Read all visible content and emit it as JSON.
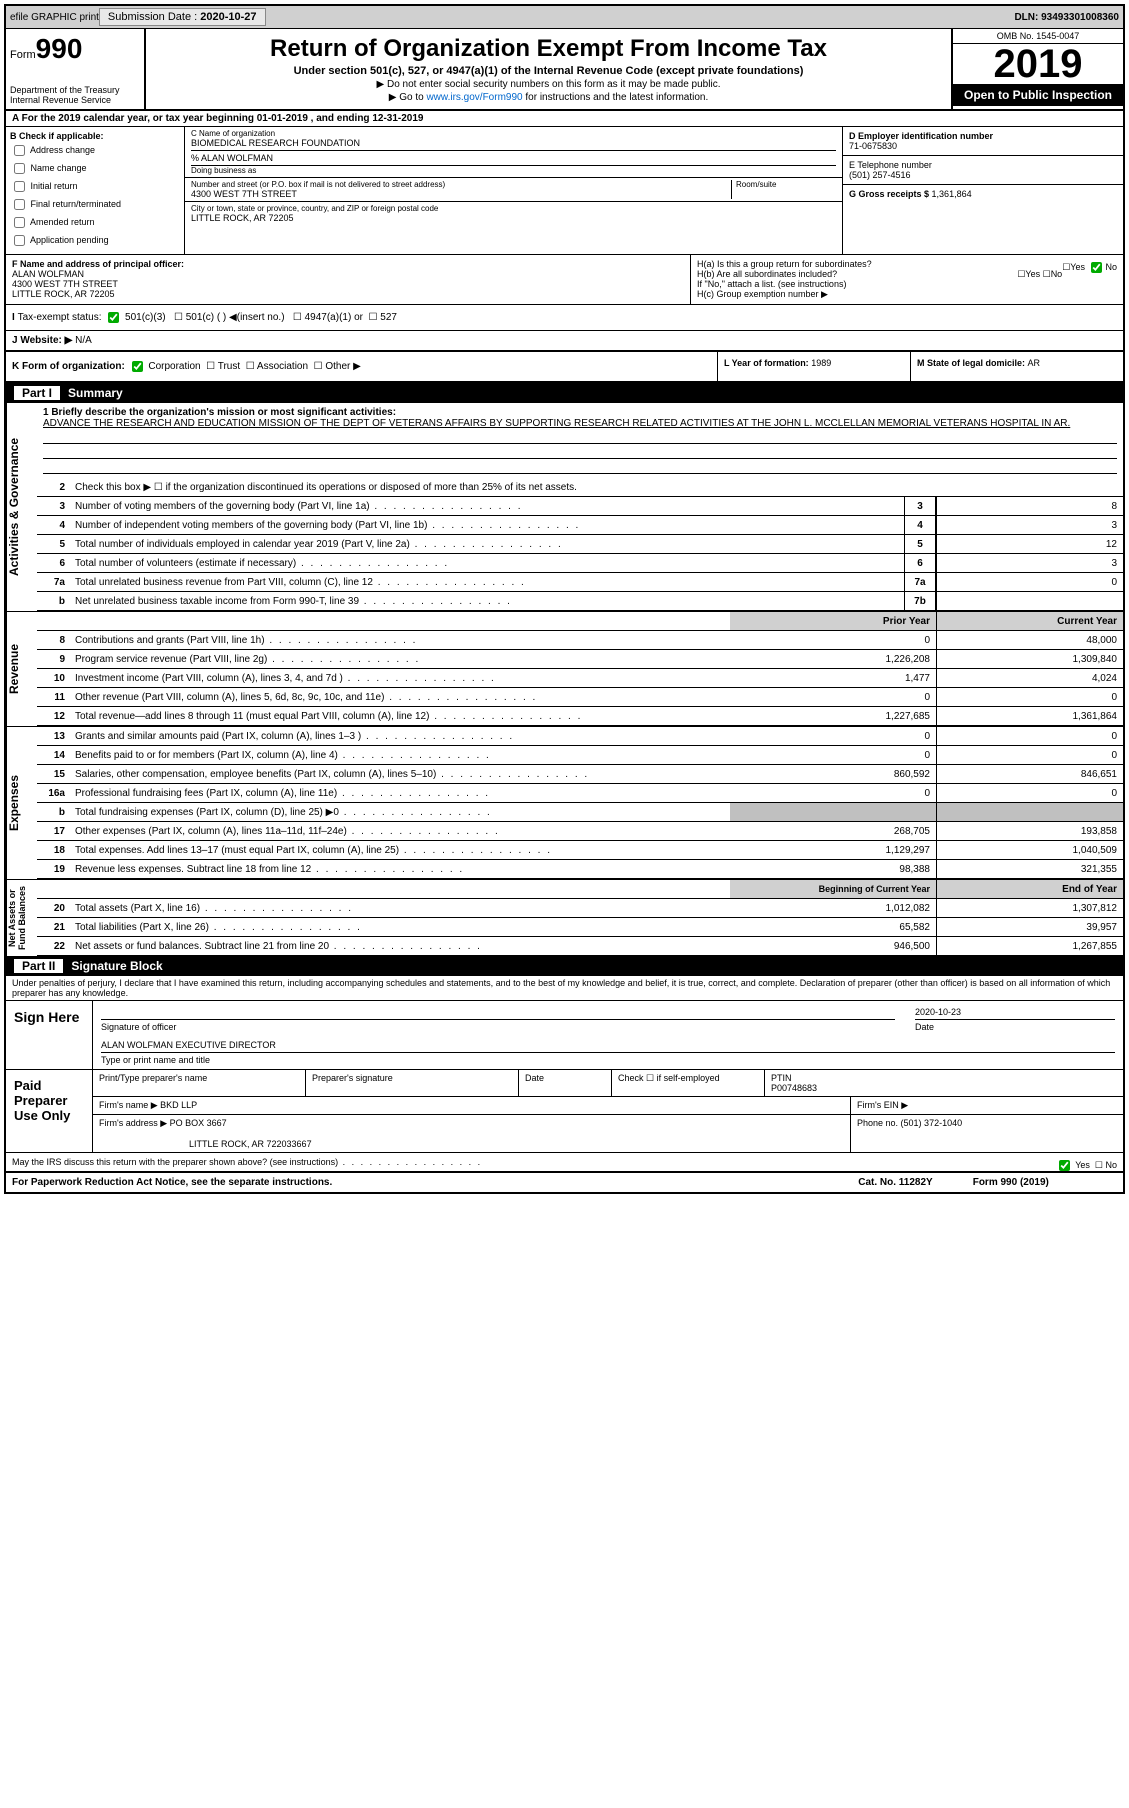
{
  "meta": {
    "efile": "efile GRAPHIC print",
    "sub_date_lbl": "Submission Date : ",
    "sub_date": "2020-10-27",
    "dln_lbl": "DLN: ",
    "dln": "93493301008360",
    "form_lbl": "Form",
    "form_no": "990",
    "dept": "Department of the Treasury\nInternal Revenue Service",
    "title": "Return of Organization Exempt From Income Tax",
    "sub1": "Under section 501(c), 527, or 4947(a)(1) of the Internal Revenue Code (except private foundations)",
    "note1": "▶ Do not enter social security numbers on this form as it may be made public.",
    "note2_pre": "▶ Go to ",
    "note2_link": "www.irs.gov/Form990",
    "note2_post": " for instructions and the latest information.",
    "omb": "OMB No. 1545-0047",
    "year": "2019",
    "inspect": "Open to Public Inspection"
  },
  "a": {
    "text": "A For the 2019 calendar year, or tax year beginning 01-01-2019   , and ending 12-31-2019"
  },
  "b": {
    "lbl": "B Check if applicable:",
    "opts": [
      "Address change",
      "Name change",
      "Initial return",
      "Final return/terminated",
      "Amended return",
      "Application pending"
    ]
  },
  "c": {
    "name_lbl": "C Name of organization",
    "name": "BIOMEDICAL RESEARCH FOUNDATION",
    "care": "% ALAN WOLFMAN",
    "dba_lbl": "Doing business as",
    "street_lbl": "Number and street (or P.O. box if mail is not delivered to street address)",
    "room_lbl": "Room/suite",
    "street": "4300 WEST 7TH STREET",
    "city_lbl": "City or town, state or province, country, and ZIP or foreign postal code",
    "city": "LITTLE ROCK, AR  72205"
  },
  "d": {
    "lbl": "D Employer identification number",
    "val": "71-0675830"
  },
  "e": {
    "lbl": "E Telephone number",
    "val": "(501) 257-4516"
  },
  "g": {
    "lbl": "G Gross receipts $ ",
    "val": "1,361,864"
  },
  "f": {
    "lbl": "F  Name and address of principal officer:",
    "name": "ALAN WOLFMAN",
    "addr": "4300 WEST 7TH STREET\nLITTLE ROCK, AR  72205"
  },
  "h": {
    "a": "H(a)  Is this a group return for subordinates?",
    "b": "H(b)  Are all subordinates included?",
    "b_note": "If \"No,\" attach a list. (see instructions)",
    "c": "H(c)  Group exemption number ▶",
    "yes": "Yes",
    "no": "No"
  },
  "i": {
    "lbl": "Tax-exempt status:",
    "opts": [
      "501(c)(3)",
      "501(c) (  ) ◀(insert no.)",
      "4947(a)(1) or",
      "527"
    ]
  },
  "j": {
    "lbl": "J   Website: ▶",
    "val": "N/A"
  },
  "k": {
    "lbl": "K Form of organization:",
    "opts": [
      "Corporation",
      "Trust",
      "Association",
      "Other ▶"
    ]
  },
  "l": {
    "lbl": "L Year of formation: ",
    "val": "1989"
  },
  "m": {
    "lbl": "M State of legal domicile: ",
    "val": "AR"
  },
  "part1": {
    "num": "Part I",
    "title": "Summary"
  },
  "mission": {
    "lbl": "1  Briefly describe the organization's mission or most significant activities:",
    "txt": "ADVANCE THE RESEARCH AND EDUCATION MISSION OF THE DEPT OF VETERANS AFFAIRS BY SUPPORTING RESEARCH RELATED ACTIVITIES AT THE JOHN L. MCCLELLAN MEMORIAL VETERANS HOSPITAL IN AR."
  },
  "line2": "Check this box ▶ ☐  if the organization discontinued its operations or disposed of more than 25% of its net assets.",
  "gov_lines": [
    {
      "n": "3",
      "t": "Number of voting members of the governing body (Part VI, line 1a)",
      "b": "3",
      "v": "8"
    },
    {
      "n": "4",
      "t": "Number of independent voting members of the governing body (Part VI, line 1b)",
      "b": "4",
      "v": "3"
    },
    {
      "n": "5",
      "t": "Total number of individuals employed in calendar year 2019 (Part V, line 2a)",
      "b": "5",
      "v": "12"
    },
    {
      "n": "6",
      "t": "Total number of volunteers (estimate if necessary)",
      "b": "6",
      "v": "3"
    },
    {
      "n": "7a",
      "t": "Total unrelated business revenue from Part VIII, column (C), line 12",
      "b": "7a",
      "v": "0"
    },
    {
      "n": "b",
      "t": "Net unrelated business taxable income from Form 990-T, line 39",
      "b": "7b",
      "v": ""
    }
  ],
  "col_hdr": {
    "py": "Prior Year",
    "cy": "Current Year"
  },
  "rev_lines": [
    {
      "n": "8",
      "t": "Contributions and grants (Part VIII, line 1h)",
      "py": "0",
      "cy": "48,000"
    },
    {
      "n": "9",
      "t": "Program service revenue (Part VIII, line 2g)",
      "py": "1,226,208",
      "cy": "1,309,840"
    },
    {
      "n": "10",
      "t": "Investment income (Part VIII, column (A), lines 3, 4, and 7d )",
      "py": "1,477",
      "cy": "4,024"
    },
    {
      "n": "11",
      "t": "Other revenue (Part VIII, column (A), lines 5, 6d, 8c, 9c, 10c, and 11e)",
      "py": "0",
      "cy": "0"
    },
    {
      "n": "12",
      "t": "Total revenue—add lines 8 through 11 (must equal Part VIII, column (A), line 12)",
      "py": "1,227,685",
      "cy": "1,361,864"
    }
  ],
  "exp_lines": [
    {
      "n": "13",
      "t": "Grants and similar amounts paid (Part IX, column (A), lines 1–3 )",
      "py": "0",
      "cy": "0"
    },
    {
      "n": "14",
      "t": "Benefits paid to or for members (Part IX, column (A), line 4)",
      "py": "0",
      "cy": "0"
    },
    {
      "n": "15",
      "t": "Salaries, other compensation, employee benefits (Part IX, column (A), lines 5–10)",
      "py": "860,592",
      "cy": "846,651"
    },
    {
      "n": "16a",
      "t": "Professional fundraising fees (Part IX, column (A), line 11e)",
      "py": "0",
      "cy": "0"
    },
    {
      "n": "b",
      "t": "Total fundraising expenses (Part IX, column (D), line 25) ▶0",
      "py": "",
      "cy": "",
      "shade": true
    },
    {
      "n": "17",
      "t": "Other expenses (Part IX, column (A), lines 11a–11d, 11f–24e)",
      "py": "268,705",
      "cy": "193,858"
    },
    {
      "n": "18",
      "t": "Total expenses. Add lines 13–17 (must equal Part IX, column (A), line 25)",
      "py": "1,129,297",
      "cy": "1,040,509"
    },
    {
      "n": "19",
      "t": "Revenue less expenses. Subtract line 18 from line 12",
      "py": "98,388",
      "cy": "321,355"
    }
  ],
  "na_hdr": {
    "py": "Beginning of Current Year",
    "cy": "End of Year"
  },
  "na_lines": [
    {
      "n": "20",
      "t": "Total assets (Part X, line 16)",
      "py": "1,012,082",
      "cy": "1,307,812"
    },
    {
      "n": "21",
      "t": "Total liabilities (Part X, line 26)",
      "py": "65,582",
      "cy": "39,957"
    },
    {
      "n": "22",
      "t": "Net assets or fund balances. Subtract line 21 from line 20",
      "py": "946,500",
      "cy": "1,267,855"
    }
  ],
  "vtabs": {
    "gov": "Activities & Governance",
    "rev": "Revenue",
    "exp": "Expenses",
    "na": "Net Assets or\nFund Balances"
  },
  "part2": {
    "num": "Part II",
    "title": "Signature Block"
  },
  "sig": {
    "decl": "Under penalties of perjury, I declare that I have examined this return, including accompanying schedules and statements, and to the best of my knowledge and belief, it is true, correct, and complete. Declaration of preparer (other than officer) is based on all information of which preparer has any knowledge.",
    "here": "Sign Here",
    "sig_of": "Signature of officer",
    "date": "Date",
    "date_val": "2020-10-23",
    "name": "ALAN WOLFMAN  EXECUTIVE DIRECTOR",
    "type": "Type or print name and title",
    "paid": "Paid Preparer Use Only",
    "p_name_lbl": "Print/Type preparer's name",
    "p_sig_lbl": "Preparer's signature",
    "p_date_lbl": "Date",
    "p_check": "Check ☐ if self-employed",
    "ptin_lbl": "PTIN",
    "ptin": "P00748683",
    "firm_lbl": "Firm's name   ▶ ",
    "firm": "BKD LLP",
    "ein_lbl": "Firm's EIN ▶",
    "addr_lbl": "Firm's address ▶ ",
    "addr": "PO BOX 3667",
    "addr2": "LITTLE ROCK, AR  722033667",
    "phone_lbl": "Phone no. ",
    "phone": "(501) 372-1040",
    "discuss": "May the IRS discuss this return with the preparer shown above? (see instructions)"
  },
  "foot": {
    "l": "For Paperwork Reduction Act Notice, see the separate instructions.",
    "m": "Cat. No. 11282Y",
    "r": "Form 990 (2019)"
  }
}
